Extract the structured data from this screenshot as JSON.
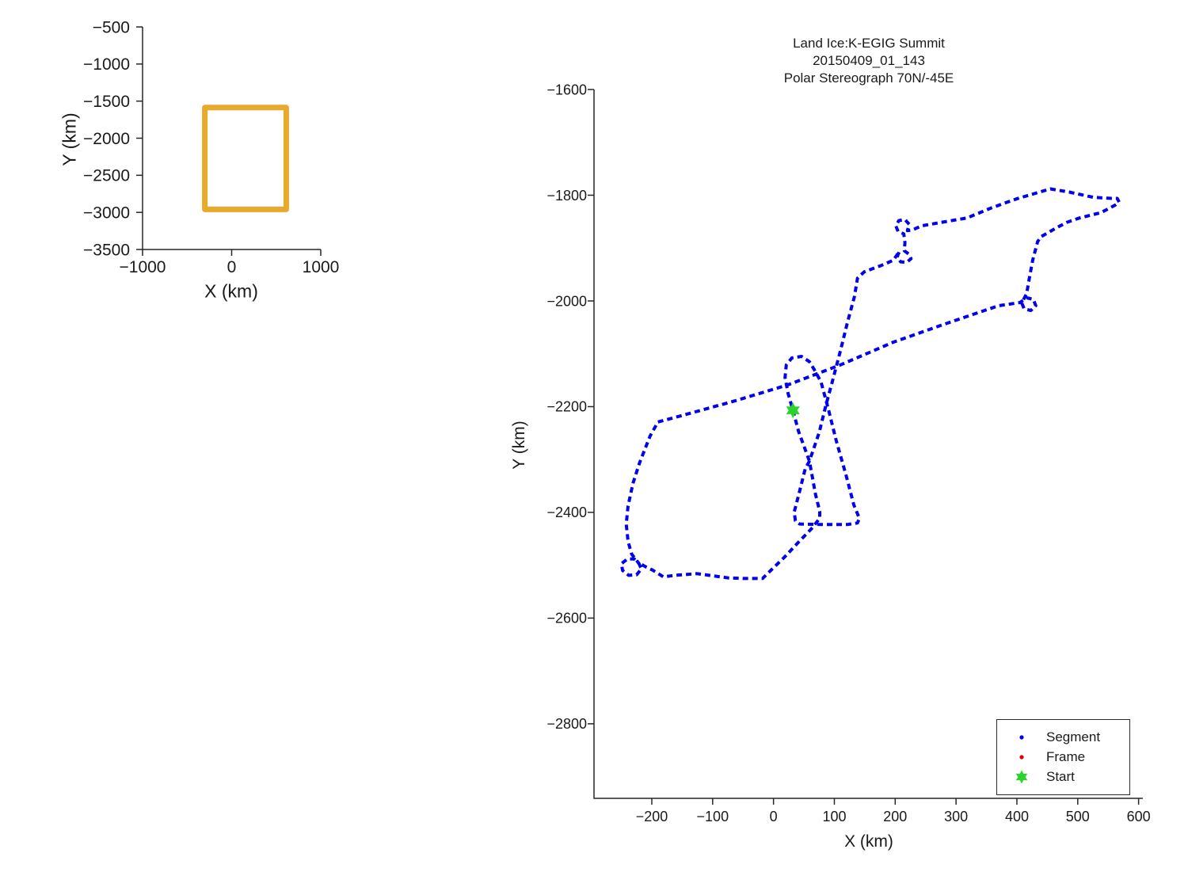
{
  "colors": {
    "segment": "#0000EE",
    "frame": "#E60000",
    "start": "#2BD42B",
    "overview_box": "#E9A92B",
    "axis": "#262626",
    "background": "#ffffff"
  },
  "main_plot": {
    "title_lines": [
      "Land Ice:K-EGIG Summit",
      "20150409_01_143",
      "Polar Stereograph 70N/-45E"
    ],
    "xlabel": "X (km)",
    "ylabel": "Y (km)"
  },
  "overview_plot": {
    "xlabel": "X (km)",
    "ylabel": "Y (km)"
  },
  "legend": {
    "items": [
      {
        "label": "Segment",
        "marker": "dot",
        "color": "#0000EE"
      },
      {
        "label": "Frame",
        "marker": "dot",
        "color": "#E60000"
      },
      {
        "label": "Start",
        "marker": "star",
        "color": "#2BD42B"
      }
    ]
  },
  "chart_data": [
    {
      "id": "overview",
      "type": "line",
      "xlabel": "X (km)",
      "ylabel": "Y (km)",
      "xlim": [
        -1000,
        1000
      ],
      "ylim": [
        -3500,
        -500
      ],
      "xticks": [
        -1000,
        0,
        1000
      ],
      "yticks": [
        -500,
        -1000,
        -1500,
        -2000,
        -2500,
        -3000,
        -3500
      ],
      "grid": false,
      "series": [
        {
          "name": "map-extent-box",
          "color": "#E9A92B",
          "closed": true,
          "points": [
            [
              -301,
              -1587
            ],
            [
              612,
              -1587
            ],
            [
              612,
              -2960
            ],
            [
              -301,
              -2960
            ]
          ]
        }
      ]
    },
    {
      "id": "main",
      "type": "scatter",
      "title": "Land Ice:K-EGIG Summit 20150409_01_143 Polar Stereograph 70N/-45E",
      "xlabel": "X (km)",
      "ylabel": "Y (km)",
      "xlim": [
        -295,
        607
      ],
      "ylim": [
        -2941,
        -1600
      ],
      "xticks": [
        -200,
        -100,
        0,
        100,
        200,
        300,
        400,
        500,
        600
      ],
      "yticks": [
        -1600,
        -1800,
        -2000,
        -2200,
        -2400,
        -2600,
        -2800
      ],
      "grid": false,
      "legend_position": "southeast",
      "series": [
        {
          "name": "Segment",
          "color": "#0000EE",
          "closed": true,
          "points": [
            [
              -190,
              -2229
            ],
            [
              -151,
              -2217
            ],
            [
              -63,
              -2189
            ],
            [
              23,
              -2159
            ],
            [
              110,
              -2121
            ],
            [
              197,
              -2078
            ],
            [
              283,
              -2043
            ],
            [
              370,
              -2009
            ],
            [
              405,
              -2003
            ],
            [
              416,
              -1994
            ],
            [
              427,
              -1997
            ],
            [
              431,
              -2009
            ],
            [
              423,
              -2018
            ],
            [
              412,
              -2015
            ],
            [
              408,
              -2004
            ],
            [
              416,
              -1986
            ],
            [
              420,
              -1960
            ],
            [
              426,
              -1923
            ],
            [
              434,
              -1888
            ],
            [
              439,
              -1879
            ],
            [
              466,
              -1861
            ],
            [
              483,
              -1851
            ],
            [
              503,
              -1843
            ],
            [
              538,
              -1833
            ],
            [
              561,
              -1819
            ],
            [
              568,
              -1813
            ],
            [
              565,
              -1806
            ],
            [
              556,
              -1806
            ],
            [
              526,
              -1804
            ],
            [
              486,
              -1794
            ],
            [
              455,
              -1788
            ],
            [
              399,
              -1807
            ],
            [
              358,
              -1824
            ],
            [
              318,
              -1843
            ],
            [
              278,
              -1851
            ],
            [
              243,
              -1858
            ],
            [
              228,
              -1866
            ],
            [
              220,
              -1867
            ],
            [
              223,
              -1855
            ],
            [
              216,
              -1846
            ],
            [
              206,
              -1848
            ],
            [
              201,
              -1858
            ],
            [
              205,
              -1869
            ],
            [
              214,
              -1873
            ],
            [
              216,
              -1890
            ],
            [
              215,
              -1905
            ],
            [
              222,
              -1911
            ],
            [
              226,
              -1920
            ],
            [
              219,
              -1927
            ],
            [
              209,
              -1926
            ],
            [
              203,
              -1917
            ],
            [
              207,
              -1906
            ],
            [
              197,
              -1923
            ],
            [
              177,
              -1933
            ],
            [
              149,
              -1945
            ],
            [
              138,
              -1957
            ],
            [
              133,
              -1992
            ],
            [
              121,
              -2043
            ],
            [
              110,
              -2094
            ],
            [
              98,
              -2147
            ],
            [
              86,
              -2198
            ],
            [
              75,
              -2249
            ],
            [
              59,
              -2303
            ],
            [
              52,
              -2318
            ],
            [
              41,
              -2369
            ],
            [
              34,
              -2399
            ],
            [
              36,
              -2416
            ],
            [
              43,
              -2422
            ],
            [
              82,
              -2423
            ],
            [
              121,
              -2423
            ],
            [
              138,
              -2420
            ],
            [
              141,
              -2411
            ],
            [
              132,
              -2386
            ],
            [
              119,
              -2329
            ],
            [
              103,
              -2264
            ],
            [
              90,
              -2204
            ],
            [
              78,
              -2153
            ],
            [
              67,
              -2130
            ],
            [
              59,
              -2115
            ],
            [
              46,
              -2105
            ],
            [
              30,
              -2108
            ],
            [
              21,
              -2121
            ],
            [
              19,
              -2145
            ],
            [
              24,
              -2175
            ],
            [
              32,
              -2207
            ],
            [
              41,
              -2246
            ],
            [
              59,
              -2303
            ],
            [
              69,
              -2366
            ],
            [
              76,
              -2398
            ],
            [
              76,
              -2411
            ],
            [
              64,
              -2429
            ],
            [
              39,
              -2459
            ],
            [
              17,
              -2486
            ],
            [
              -2,
              -2507
            ],
            [
              -18,
              -2525
            ],
            [
              -48,
              -2525
            ],
            [
              -74,
              -2524
            ],
            [
              -126,
              -2516
            ],
            [
              -162,
              -2519
            ],
            [
              -181,
              -2522
            ],
            [
              -199,
              -2509
            ],
            [
              -210,
              -2503
            ],
            [
              -222,
              -2495
            ],
            [
              -217,
              -2507
            ],
            [
              -225,
              -2518
            ],
            [
              -238,
              -2519
            ],
            [
              -248,
              -2510
            ],
            [
              -250,
              -2497
            ],
            [
              -240,
              -2488
            ],
            [
              -229,
              -2488
            ],
            [
              -221,
              -2497
            ],
            [
              -233,
              -2479
            ],
            [
              -239,
              -2455
            ],
            [
              -242,
              -2422
            ],
            [
              -239,
              -2388
            ],
            [
              -231,
              -2345
            ],
            [
              -220,
              -2306
            ],
            [
              -203,
              -2256
            ]
          ]
        },
        {
          "name": "Frame",
          "color": "#E60000",
          "points": []
        },
        {
          "name": "Start",
          "color": "#2BD42B",
          "points": [
            [
              32,
              -2207
            ]
          ]
        }
      ]
    }
  ]
}
